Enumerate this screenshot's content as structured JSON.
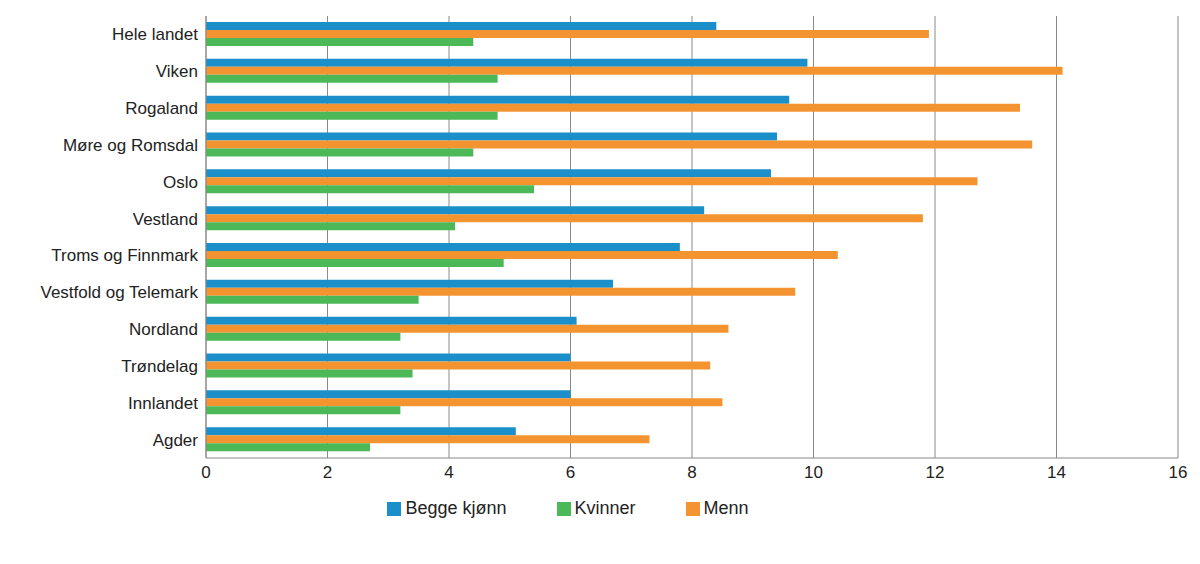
{
  "chart_data": {
    "type": "bar",
    "orientation": "horizontal",
    "categories": [
      "Hele landet",
      "Viken",
      "Rogaland",
      "Møre og Romsdal",
      "Oslo",
      "Vestland",
      "Troms og Finnmark",
      "Vestfold og Telemark",
      "Nordland",
      "Trøndelag",
      "Innlandet",
      "Agder"
    ],
    "series": [
      {
        "name": "Begge kjønn",
        "color": "#1a8fc9",
        "values": [
          8.4,
          9.9,
          9.6,
          9.4,
          9.3,
          8.2,
          7.8,
          6.7,
          6.1,
          6.0,
          6.0,
          5.1
        ]
      },
      {
        "name": "Menn",
        "color": "#f39430",
        "values": [
          11.9,
          14.1,
          13.4,
          13.6,
          12.7,
          11.8,
          10.4,
          9.7,
          8.6,
          8.3,
          8.5,
          7.3
        ]
      },
      {
        "name": "Kvinner",
        "color": "#4cb857",
        "values": [
          4.4,
          4.8,
          4.8,
          4.4,
          5.4,
          4.1,
          4.9,
          3.5,
          3.2,
          3.4,
          3.2,
          2.7
        ]
      }
    ],
    "xlim": [
      0,
      16
    ],
    "xticks": [
      0,
      2,
      4,
      6,
      8,
      10,
      12,
      14,
      16
    ],
    "grid": true,
    "legend": "bottom"
  }
}
